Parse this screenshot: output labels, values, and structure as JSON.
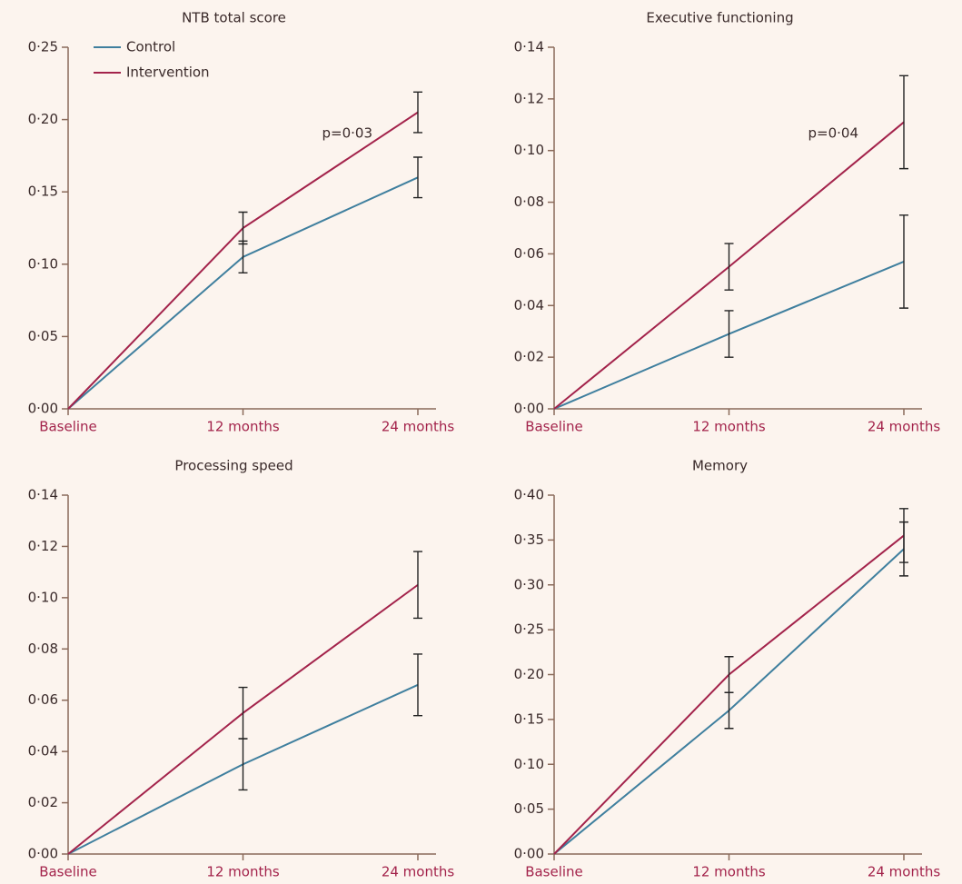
{
  "chart_data": [
    {
      "type": "line",
      "title": "NTB total score",
      "annotation": "p=0·03",
      "categories": [
        "Baseline",
        "12 months",
        "24 months"
      ],
      "ylim": [
        0,
        0.25
      ],
      "yticks": [
        {
          "value": 0,
          "label": "0·00"
        },
        {
          "value": 0.05,
          "label": "0·05"
        },
        {
          "value": 0.1,
          "label": "0·10"
        },
        {
          "value": 0.15,
          "label": "0·15"
        },
        {
          "value": 0.2,
          "label": "0·20"
        },
        {
          "value": 0.25,
          "label": "0·25"
        }
      ],
      "series": [
        {
          "name": "Control",
          "color": "#3f7f9e",
          "values": [
            0,
            0.105,
            0.16
          ],
          "errors": [
            null,
            0.011,
            0.014
          ]
        },
        {
          "name": "Intervention",
          "color": "#a3234b",
          "values": [
            0,
            0.125,
            0.205
          ],
          "errors": [
            null,
            0.011,
            0.014
          ]
        }
      ]
    },
    {
      "type": "line",
      "title": "Executive functioning",
      "annotation": "p=0·04",
      "categories": [
        "Baseline",
        "12 months",
        "24 months"
      ],
      "ylim": [
        0,
        0.14
      ],
      "yticks": [
        {
          "value": 0,
          "label": "0·00"
        },
        {
          "value": 0.02,
          "label": "0·02"
        },
        {
          "value": 0.04,
          "label": "0·04"
        },
        {
          "value": 0.06,
          "label": "0·06"
        },
        {
          "value": 0.08,
          "label": "0·08"
        },
        {
          "value": 0.1,
          "label": "0·10"
        },
        {
          "value": 0.12,
          "label": "0·12"
        },
        {
          "value": 0.14,
          "label": "0·14"
        }
      ],
      "series": [
        {
          "color": "#3f7f9e",
          "values": [
            0,
            0.029,
            0.057
          ],
          "errors": [
            null,
            0.009,
            0.018
          ]
        },
        {
          "color": "#a3234b",
          "values": [
            0,
            0.055,
            0.111
          ],
          "errors": [
            null,
            0.009,
            0.018
          ]
        }
      ]
    },
    {
      "type": "line",
      "title": "Processing speed",
      "categories": [
        "Baseline",
        "12 months",
        "24 months"
      ],
      "ylim": [
        0,
        0.14
      ],
      "yticks": [
        {
          "value": 0,
          "label": "0·00"
        },
        {
          "value": 0.02,
          "label": "0·02"
        },
        {
          "value": 0.04,
          "label": "0·04"
        },
        {
          "value": 0.06,
          "label": "0·06"
        },
        {
          "value": 0.08,
          "label": "0·08"
        },
        {
          "value": 0.1,
          "label": "0·10"
        },
        {
          "value": 0.12,
          "label": "0·12"
        },
        {
          "value": 0.14,
          "label": "0·14"
        }
      ],
      "series": [
        {
          "color": "#3f7f9e",
          "values": [
            0,
            0.035,
            0.066
          ],
          "errors": [
            null,
            0.01,
            0.012
          ]
        },
        {
          "color": "#a3234b",
          "values": [
            0,
            0.055,
            0.105
          ],
          "errors": [
            null,
            0.01,
            0.013
          ]
        }
      ]
    },
    {
      "type": "line",
      "title": "Memory",
      "categories": [
        "Baseline",
        "12 months",
        "24 months"
      ],
      "ylim": [
        0,
        0.4
      ],
      "yticks": [
        {
          "value": 0,
          "label": "0·00"
        },
        {
          "value": 0.05,
          "label": "0·05"
        },
        {
          "value": 0.1,
          "label": "0·10"
        },
        {
          "value": 0.15,
          "label": "0·15"
        },
        {
          "value": 0.2,
          "label": "0·20"
        },
        {
          "value": 0.25,
          "label": "0·25"
        },
        {
          "value": 0.3,
          "label": "0·30"
        },
        {
          "value": 0.35,
          "label": "0·35"
        },
        {
          "value": 0.4,
          "label": "0·40"
        }
      ],
      "series": [
        {
          "color": "#3f7f9e",
          "values": [
            0,
            0.16,
            0.34
          ],
          "errors": [
            null,
            0.02,
            0.03
          ]
        },
        {
          "color": "#a3234b",
          "values": [
            0,
            0.2,
            0.355
          ],
          "errors": [
            null,
            0.02,
            0.03
          ]
        }
      ]
    }
  ]
}
